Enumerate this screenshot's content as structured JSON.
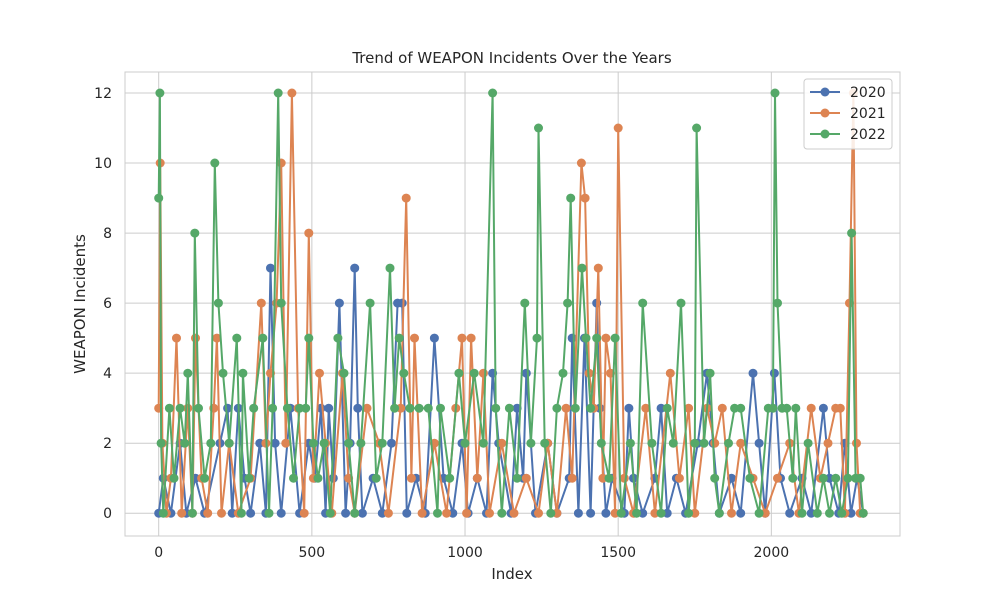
{
  "chart_data": {
    "type": "line",
    "title": "Trend of WEAPON Incidents Over the Years",
    "xlabel": "Index",
    "ylabel": "WEAPON Incidents",
    "xlim": [
      -110,
      2420
    ],
    "ylim": [
      -0.65,
      12.6
    ],
    "xticks": [
      0,
      500,
      1000,
      1500,
      2000
    ],
    "yticks": [
      0,
      2,
      4,
      6,
      8,
      10,
      12
    ],
    "grid": true,
    "legend_position": "top-right",
    "series": [
      {
        "name": "2020",
        "color": "#4c72b0",
        "points": [
          [
            0,
            0
          ],
          [
            15,
            1
          ],
          [
            40,
            0
          ],
          [
            70,
            2
          ],
          [
            90,
            0
          ],
          [
            120,
            1
          ],
          [
            150,
            0
          ],
          [
            200,
            2
          ],
          [
            225,
            3
          ],
          [
            240,
            0
          ],
          [
            260,
            3
          ],
          [
            280,
            1
          ],
          [
            300,
            0
          ],
          [
            330,
            2
          ],
          [
            350,
            0
          ],
          [
            365,
            7
          ],
          [
            380,
            2
          ],
          [
            400,
            0
          ],
          [
            430,
            3
          ],
          [
            460,
            0
          ],
          [
            490,
            2
          ],
          [
            510,
            1
          ],
          [
            530,
            3
          ],
          [
            545,
            0
          ],
          [
            555,
            3
          ],
          [
            570,
            1
          ],
          [
            590,
            6
          ],
          [
            610,
            0
          ],
          [
            625,
            2
          ],
          [
            640,
            7
          ],
          [
            650,
            3
          ],
          [
            665,
            0
          ],
          [
            700,
            1
          ],
          [
            730,
            0
          ],
          [
            760,
            2
          ],
          [
            780,
            6
          ],
          [
            795,
            6
          ],
          [
            810,
            0
          ],
          [
            840,
            1
          ],
          [
            870,
            0
          ],
          [
            900,
            5
          ],
          [
            930,
            1
          ],
          [
            960,
            0
          ],
          [
            990,
            2
          ],
          [
            1010,
            0
          ],
          [
            1040,
            1
          ],
          [
            1070,
            0
          ],
          [
            1090,
            4
          ],
          [
            1110,
            2
          ],
          [
            1150,
            0
          ],
          [
            1170,
            3
          ],
          [
            1190,
            1
          ],
          [
            1200,
            4
          ],
          [
            1230,
            0
          ],
          [
            1270,
            2
          ],
          [
            1300,
            0
          ],
          [
            1340,
            1
          ],
          [
            1350,
            5
          ],
          [
            1370,
            0
          ],
          [
            1390,
            5
          ],
          [
            1410,
            0
          ],
          [
            1430,
            6
          ],
          [
            1440,
            3
          ],
          [
            1460,
            0
          ],
          [
            1480,
            1
          ],
          [
            1520,
            0
          ],
          [
            1535,
            3
          ],
          [
            1550,
            1
          ],
          [
            1580,
            0
          ],
          [
            1620,
            1
          ],
          [
            1640,
            3
          ],
          [
            1660,
            0
          ],
          [
            1690,
            1
          ],
          [
            1720,
            0
          ],
          [
            1760,
            2
          ],
          [
            1790,
            4
          ],
          [
            1810,
            2
          ],
          [
            1830,
            0
          ],
          [
            1870,
            1
          ],
          [
            1900,
            0
          ],
          [
            1940,
            4
          ],
          [
            1960,
            2
          ],
          [
            1980,
            0
          ],
          [
            2010,
            4
          ],
          [
            2030,
            1
          ],
          [
            2060,
            0
          ],
          [
            2100,
            1
          ],
          [
            2130,
            0
          ],
          [
            2170,
            3
          ],
          [
            2190,
            1
          ],
          [
            2220,
            0
          ],
          [
            2240,
            2
          ],
          [
            2260,
            0
          ],
          [
            2280,
            1
          ],
          [
            2300,
            0
          ]
        ]
      },
      {
        "name": "2021",
        "color": "#dd8452",
        "points": [
          [
            0,
            3
          ],
          [
            5,
            10
          ],
          [
            12,
            2
          ],
          [
            25,
            0
          ],
          [
            40,
            1
          ],
          [
            58,
            5
          ],
          [
            75,
            0
          ],
          [
            95,
            3
          ],
          [
            110,
            0
          ],
          [
            120,
            5
          ],
          [
            140,
            1
          ],
          [
            160,
            0
          ],
          [
            180,
            3
          ],
          [
            190,
            5
          ],
          [
            205,
            0
          ],
          [
            230,
            2
          ],
          [
            260,
            0
          ],
          [
            300,
            1
          ],
          [
            335,
            6
          ],
          [
            350,
            2
          ],
          [
            365,
            4
          ],
          [
            385,
            6
          ],
          [
            400,
            10
          ],
          [
            415,
            2
          ],
          [
            435,
            12
          ],
          [
            455,
            3
          ],
          [
            475,
            0
          ],
          [
            490,
            8
          ],
          [
            505,
            1
          ],
          [
            525,
            4
          ],
          [
            545,
            2
          ],
          [
            565,
            0
          ],
          [
            600,
            4
          ],
          [
            620,
            1
          ],
          [
            640,
            0
          ],
          [
            680,
            3
          ],
          [
            720,
            2
          ],
          [
            750,
            0
          ],
          [
            790,
            3
          ],
          [
            808,
            9
          ],
          [
            825,
            1
          ],
          [
            835,
            5
          ],
          [
            860,
            0
          ],
          [
            900,
            2
          ],
          [
            940,
            0
          ],
          [
            970,
            3
          ],
          [
            990,
            5
          ],
          [
            1005,
            0
          ],
          [
            1020,
            5
          ],
          [
            1040,
            1
          ],
          [
            1060,
            4
          ],
          [
            1080,
            0
          ],
          [
            1120,
            2
          ],
          [
            1160,
            0
          ],
          [
            1200,
            1
          ],
          [
            1240,
            0
          ],
          [
            1270,
            2
          ],
          [
            1300,
            0
          ],
          [
            1330,
            3
          ],
          [
            1350,
            1
          ],
          [
            1380,
            10
          ],
          [
            1392,
            9
          ],
          [
            1405,
            4
          ],
          [
            1420,
            3
          ],
          [
            1435,
            7
          ],
          [
            1450,
            1
          ],
          [
            1460,
            5
          ],
          [
            1475,
            4
          ],
          [
            1490,
            0
          ],
          [
            1500,
            11
          ],
          [
            1520,
            1
          ],
          [
            1550,
            0
          ],
          [
            1590,
            3
          ],
          [
            1620,
            0
          ],
          [
            1670,
            4
          ],
          [
            1700,
            1
          ],
          [
            1730,
            3
          ],
          [
            1750,
            0
          ],
          [
            1790,
            3
          ],
          [
            1815,
            2
          ],
          [
            1840,
            3
          ],
          [
            1870,
            0
          ],
          [
            1900,
            2
          ],
          [
            1940,
            1
          ],
          [
            1980,
            0
          ],
          [
            2020,
            1
          ],
          [
            2060,
            2
          ],
          [
            2090,
            0
          ],
          [
            2130,
            3
          ],
          [
            2160,
            1
          ],
          [
            2185,
            2
          ],
          [
            2210,
            3
          ],
          [
            2225,
            3
          ],
          [
            2240,
            0
          ],
          [
            2255,
            6
          ],
          [
            2268,
            12
          ],
          [
            2278,
            2
          ],
          [
            2290,
            0
          ],
          [
            2300,
            0
          ]
        ]
      },
      {
        "name": "2022",
        "color": "#55a868",
        "points": [
          [
            0,
            9
          ],
          [
            4,
            12
          ],
          [
            8,
            2
          ],
          [
            15,
            0
          ],
          [
            35,
            3
          ],
          [
            50,
            1
          ],
          [
            70,
            3
          ],
          [
            85,
            2
          ],
          [
            95,
            4
          ],
          [
            110,
            0
          ],
          [
            118,
            8
          ],
          [
            130,
            3
          ],
          [
            150,
            1
          ],
          [
            170,
            2
          ],
          [
            183,
            10
          ],
          [
            195,
            6
          ],
          [
            210,
            4
          ],
          [
            230,
            2
          ],
          [
            255,
            5
          ],
          [
            270,
            0
          ],
          [
            275,
            4
          ],
          [
            295,
            1
          ],
          [
            310,
            3
          ],
          [
            340,
            5
          ],
          [
            360,
            0
          ],
          [
            372,
            3
          ],
          [
            390,
            12
          ],
          [
            400,
            6
          ],
          [
            420,
            3
          ],
          [
            440,
            1
          ],
          [
            460,
            3
          ],
          [
            480,
            3
          ],
          [
            490,
            5
          ],
          [
            505,
            2
          ],
          [
            520,
            1
          ],
          [
            540,
            2
          ],
          [
            560,
            0
          ],
          [
            585,
            5
          ],
          [
            605,
            4
          ],
          [
            620,
            2
          ],
          [
            640,
            0
          ],
          [
            660,
            2
          ],
          [
            690,
            6
          ],
          [
            710,
            1
          ],
          [
            730,
            2
          ],
          [
            755,
            7
          ],
          [
            770,
            3
          ],
          [
            785,
            5
          ],
          [
            800,
            4
          ],
          [
            820,
            3
          ],
          [
            850,
            3
          ],
          [
            880,
            3
          ],
          [
            910,
            0
          ],
          [
            920,
            3
          ],
          [
            950,
            1
          ],
          [
            980,
            4
          ],
          [
            1000,
            2
          ],
          [
            1030,
            4
          ],
          [
            1060,
            2
          ],
          [
            1090,
            12
          ],
          [
            1100,
            3
          ],
          [
            1120,
            0
          ],
          [
            1145,
            3
          ],
          [
            1170,
            1
          ],
          [
            1195,
            6
          ],
          [
            1215,
            2
          ],
          [
            1235,
            5
          ],
          [
            1240,
            11
          ],
          [
            1260,
            2
          ],
          [
            1280,
            0
          ],
          [
            1300,
            3
          ],
          [
            1320,
            4
          ],
          [
            1335,
            6
          ],
          [
            1345,
            9
          ],
          [
            1360,
            3
          ],
          [
            1382,
            7
          ],
          [
            1395,
            5
          ],
          [
            1410,
            3
          ],
          [
            1430,
            5
          ],
          [
            1445,
            2
          ],
          [
            1470,
            1
          ],
          [
            1490,
            5
          ],
          [
            1510,
            0
          ],
          [
            1540,
            2
          ],
          [
            1560,
            0
          ],
          [
            1580,
            6
          ],
          [
            1610,
            2
          ],
          [
            1640,
            0
          ],
          [
            1660,
            3
          ],
          [
            1680,
            2
          ],
          [
            1705,
            6
          ],
          [
            1730,
            0
          ],
          [
            1750,
            2
          ],
          [
            1756,
            11
          ],
          [
            1780,
            2
          ],
          [
            1800,
            4
          ],
          [
            1815,
            1
          ],
          [
            1830,
            0
          ],
          [
            1860,
            2
          ],
          [
            1880,
            3
          ],
          [
            1900,
            3
          ],
          [
            1930,
            1
          ],
          [
            1960,
            0
          ],
          [
            1990,
            3
          ],
          [
            2005,
            3
          ],
          [
            2012,
            12
          ],
          [
            2020,
            6
          ],
          [
            2035,
            3
          ],
          [
            2050,
            3
          ],
          [
            2070,
            1
          ],
          [
            2080,
            3
          ],
          [
            2100,
            0
          ],
          [
            2120,
            2
          ],
          [
            2150,
            0
          ],
          [
            2170,
            1
          ],
          [
            2190,
            0
          ],
          [
            2210,
            1
          ],
          [
            2230,
            0
          ],
          [
            2250,
            1
          ],
          [
            2262,
            8
          ],
          [
            2275,
            1
          ],
          [
            2290,
            1
          ],
          [
            2300,
            0
          ]
        ]
      }
    ]
  }
}
